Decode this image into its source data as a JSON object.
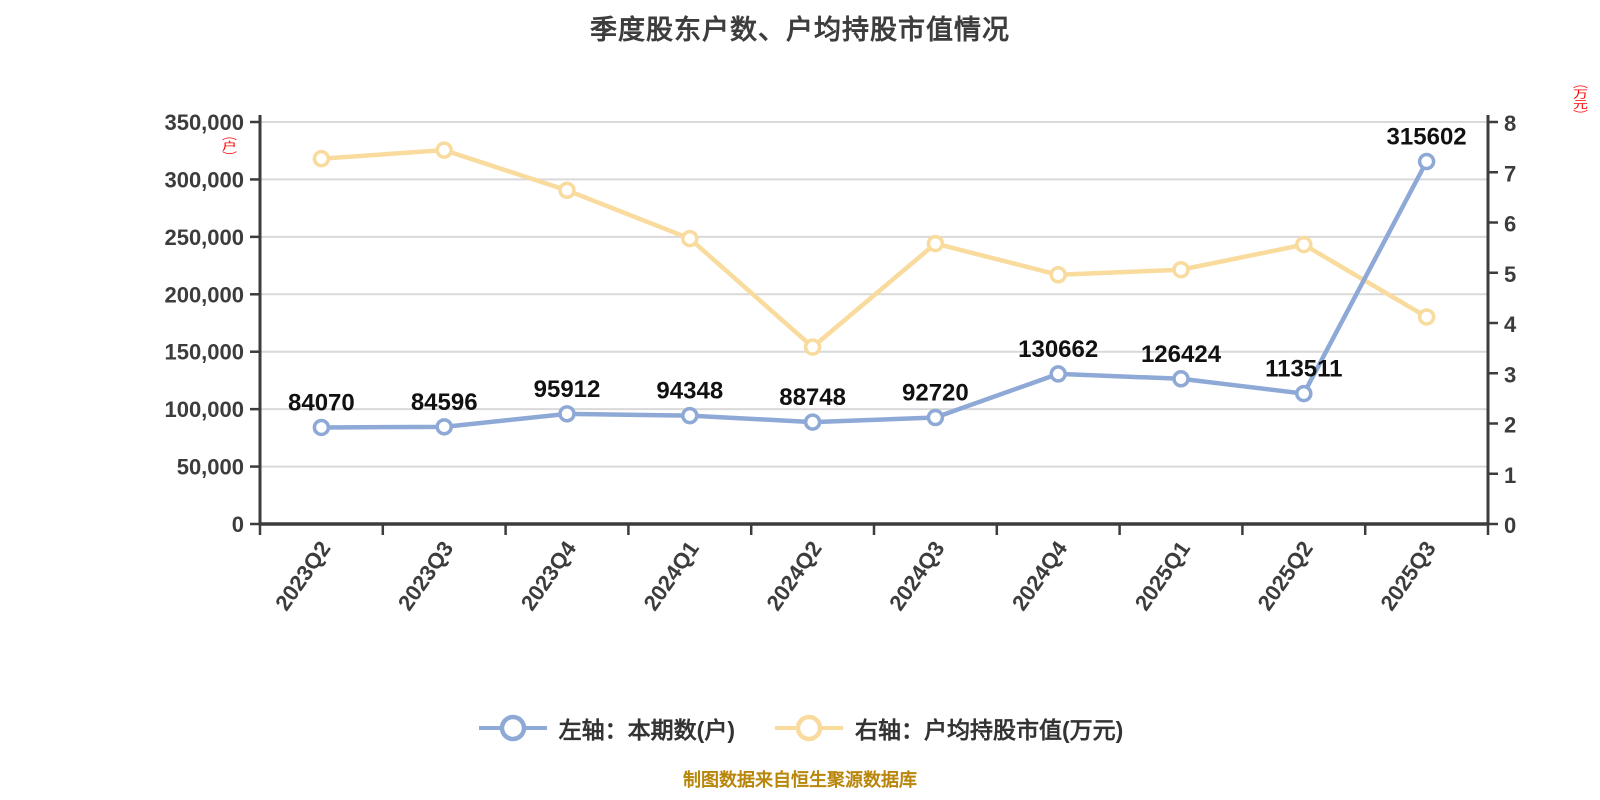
{
  "title": "季度股东户数、户均持股市值情况",
  "footer": {
    "text": "制图数据来自恒生聚源数据库"
  },
  "colors": {
    "series_blue": "#8EA9D6",
    "series_yellow": "#F8DB9D",
    "marker_fill": "#FFFFFF",
    "grid": "#D9D9D9",
    "axis": "#3C3C3C",
    "point_label": "#111111",
    "unit_label": "#FF0000",
    "footer_text": "#B8860B",
    "title_text": "#3D3D3D"
  },
  "chart_data": {
    "type": "line",
    "title": "季度股东户数、户均持股市值情况",
    "categories": [
      "2023Q2",
      "2023Q3",
      "2023Q4",
      "2024Q1",
      "2024Q2",
      "2024Q3",
      "2024Q4",
      "2025Q1",
      "2025Q2",
      "2025Q3"
    ],
    "series": [
      {
        "name": "左轴：本期数(户)",
        "yaxis": "left",
        "color": "#8EA9D6",
        "marker_fill": "#FFFFFF",
        "point_labels": true,
        "values": [
          84070,
          84596,
          95912,
          94348,
          88748,
          92720,
          130662,
          126424,
          113511,
          315602
        ]
      },
      {
        "name": "右轴：户均持股市值(万元)",
        "yaxis": "right",
        "color": "#F8DB9D",
        "marker_fill": "#FFFFFF",
        "point_labels": false,
        "values": [
          7.27,
          7.44,
          6.64,
          5.68,
          3.52,
          5.58,
          4.96,
          5.06,
          5.56,
          4.12
        ]
      }
    ],
    "left_axis": {
      "unit": "（户）",
      "min": 0,
      "max": 350000,
      "step": 50000,
      "tick_format": "thousands",
      "tick_labels": [
        "0",
        "50,000",
        "100,000",
        "150,000",
        "200,000",
        "250,000",
        "300,000",
        "350,000"
      ]
    },
    "right_axis": {
      "unit": "（万元）",
      "min": 0,
      "max": 8,
      "step": 1,
      "tick_format": "plain",
      "tick_labels": [
        "0",
        "1",
        "2",
        "3",
        "4",
        "5",
        "6",
        "7",
        "8"
      ]
    },
    "grid": true,
    "legend_position": "bottom"
  }
}
